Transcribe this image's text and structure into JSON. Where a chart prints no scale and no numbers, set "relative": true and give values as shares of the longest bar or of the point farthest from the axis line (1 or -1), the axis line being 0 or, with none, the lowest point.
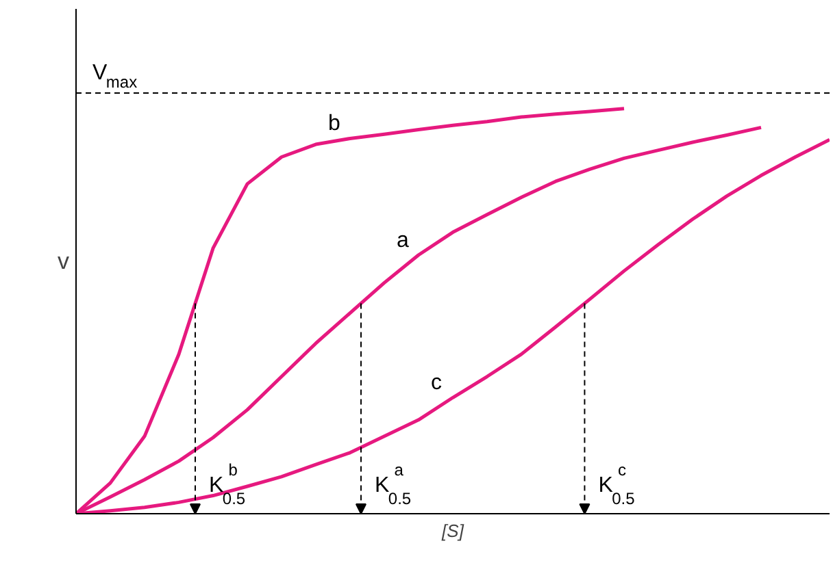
{
  "chart_data": {
    "type": "line",
    "relative": true,
    "xlabel": "[S]",
    "ylabel": "v",
    "line_style": "solid",
    "marker": "none",
    "categories": [
      null,
      null,
      null,
      null,
      null,
      null,
      null,
      null,
      null,
      null,
      null,
      null,
      null,
      null,
      null,
      null,
      null,
      null,
      null,
      null,
      null,
      null,
      null
    ],
    "series": [
      {
        "name": "a",
        "color": "#e6197f",
        "values": [
          0,
          0.04,
          0.081,
          0.125,
          0.181,
          0.247,
          0.326,
          0.405,
          0.477,
          0.549,
          0.615,
          0.669,
          0.711,
          0.752,
          0.79,
          0.819,
          0.845,
          0.864,
          0.883,
          0.9,
          0.918,
          null,
          null
        ]
      },
      {
        "name": "b",
        "color": "#e6197f",
        "values": [
          0,
          0.073,
          0.184,
          0.379,
          0.631,
          0.784,
          0.848,
          0.878,
          0.892,
          0.902,
          0.913,
          0.923,
          0.932,
          0.943,
          0.95,
          0.956,
          0.963,
          null,
          null,
          null,
          null,
          null,
          null
        ]
      },
      {
        "name": "c",
        "color": "#e6197f",
        "values": [
          0,
          0.007,
          0.015,
          0.027,
          0.043,
          0.065,
          0.088,
          0.117,
          0.145,
          0.184,
          0.223,
          0.276,
          0.326,
          0.379,
          0.444,
          0.51,
          0.577,
          0.64,
          0.7,
          0.755,
          0.804,
          0.848,
          0.889
        ]
      },
      {
        "name": "V$_{max}$",
        "color": "#000000",
        "line_style": "dashed",
        "values": [
          1,
          1,
          1,
          1,
          1,
          1,
          1,
          1,
          1,
          1,
          1,
          1,
          1,
          1,
          1,
          1,
          1,
          1,
          1,
          1,
          1,
          1,
          1
        ]
      }
    ],
    "annotations": [
      "K$_{0.5}$$^{a}$",
      "K$_{0.5}$$^{b}$",
      "K$_{0.5}$$^{c}$"
    ]
  }
}
